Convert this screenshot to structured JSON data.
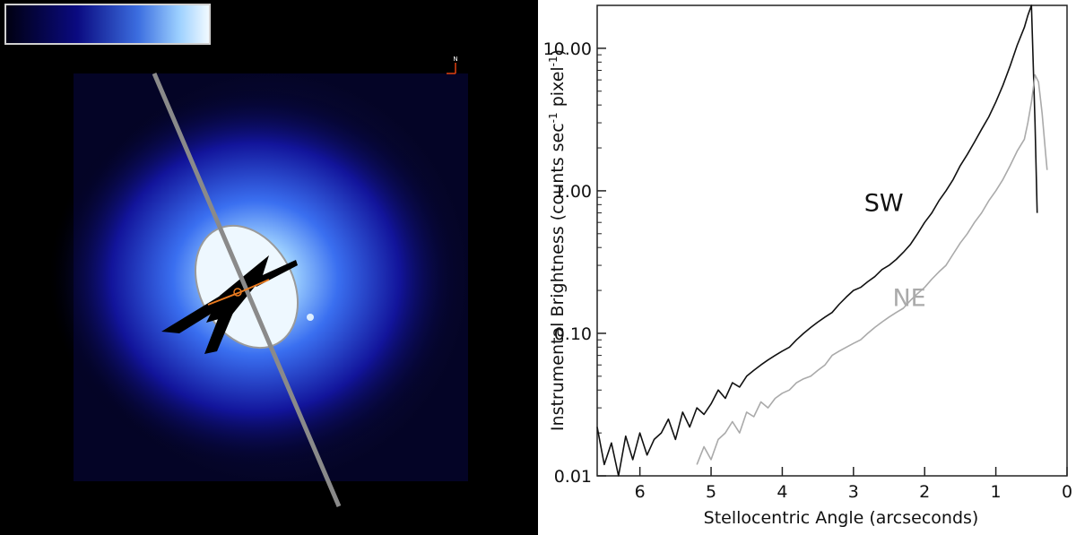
{
  "image_panel": {
    "compass": "N"
  },
  "chart_data": {
    "type": "line",
    "xlabel": "Stellocentric Angle (arcseconds)",
    "ylabel_main": "Instrumental Brightness (counts sec",
    "ylabel_sup1": "-1",
    "ylabel_mid": " pixel",
    "ylabel_sup2": "-1",
    "ylabel_end": ")",
    "xlim": [
      6.6,
      0
    ],
    "ylim": [
      0.01,
      20
    ],
    "yscale": "log",
    "x_ticks": [
      6,
      5,
      4,
      3,
      2,
      1,
      0
    ],
    "x_tick_labels": [
      "6",
      "5",
      "4",
      "3",
      "2",
      "1",
      "0"
    ],
    "y_ticks": [
      0.01,
      0.1,
      1,
      10
    ],
    "y_tick_labels": [
      "0.01",
      "0.10",
      "1.00",
      "10.00"
    ],
    "colors": {
      "SW": "#111111",
      "NE": "#aaaaaa"
    },
    "series": [
      {
        "name": "SW",
        "x": [
          6.6,
          6.5,
          6.4,
          6.3,
          6.2,
          6.1,
          6.0,
          5.9,
          5.8,
          5.7,
          5.6,
          5.5,
          5.4,
          5.3,
          5.2,
          5.1,
          5.0,
          4.9,
          4.8,
          4.7,
          4.6,
          4.5,
          4.4,
          4.3,
          4.2,
          4.1,
          4.0,
          3.9,
          3.8,
          3.7,
          3.6,
          3.5,
          3.4,
          3.3,
          3.2,
          3.1,
          3.0,
          2.9,
          2.8,
          2.7,
          2.6,
          2.5,
          2.4,
          2.3,
          2.2,
          2.1,
          2.0,
          1.9,
          1.8,
          1.7,
          1.6,
          1.5,
          1.4,
          1.3,
          1.2,
          1.1,
          1.0,
          0.9,
          0.8,
          0.7,
          0.6,
          0.55,
          0.5,
          0.45,
          0.42
        ],
        "values": [
          0.022,
          0.012,
          0.017,
          0.01,
          0.019,
          0.013,
          0.02,
          0.014,
          0.018,
          0.02,
          0.025,
          0.018,
          0.028,
          0.022,
          0.03,
          0.027,
          0.032,
          0.04,
          0.035,
          0.045,
          0.042,
          0.05,
          0.055,
          0.06,
          0.065,
          0.07,
          0.075,
          0.08,
          0.09,
          0.1,
          0.11,
          0.12,
          0.13,
          0.14,
          0.16,
          0.18,
          0.2,
          0.21,
          0.23,
          0.25,
          0.28,
          0.3,
          0.33,
          0.37,
          0.42,
          0.5,
          0.6,
          0.7,
          0.85,
          1.0,
          1.2,
          1.5,
          1.8,
          2.2,
          2.7,
          3.3,
          4.2,
          5.5,
          7.5,
          10.5,
          14.0,
          17.0,
          20.0,
          3.0,
          0.7
        ]
      },
      {
        "name": "NE",
        "x": [
          5.2,
          5.1,
          5.0,
          4.9,
          4.8,
          4.7,
          4.6,
          4.5,
          4.4,
          4.3,
          4.2,
          4.1,
          4.0,
          3.9,
          3.8,
          3.7,
          3.6,
          3.5,
          3.4,
          3.3,
          3.2,
          3.1,
          3.0,
          2.9,
          2.8,
          2.7,
          2.6,
          2.5,
          2.4,
          2.3,
          2.2,
          2.1,
          2.0,
          1.9,
          1.8,
          1.7,
          1.6,
          1.5,
          1.4,
          1.3,
          1.2,
          1.1,
          1.0,
          0.9,
          0.8,
          0.7,
          0.6,
          0.55,
          0.5,
          0.45,
          0.4,
          0.35,
          0.3,
          0.28
        ],
        "values": [
          0.012,
          0.016,
          0.013,
          0.018,
          0.02,
          0.024,
          0.02,
          0.028,
          0.026,
          0.033,
          0.03,
          0.035,
          0.038,
          0.04,
          0.045,
          0.048,
          0.05,
          0.055,
          0.06,
          0.07,
          0.075,
          0.08,
          0.085,
          0.09,
          0.1,
          0.11,
          0.12,
          0.13,
          0.14,
          0.15,
          0.17,
          0.19,
          0.21,
          0.24,
          0.27,
          0.3,
          0.36,
          0.43,
          0.5,
          0.6,
          0.7,
          0.85,
          1.0,
          1.2,
          1.5,
          1.9,
          2.3,
          3.0,
          4.2,
          6.5,
          5.8,
          3.5,
          1.8,
          1.4
        ]
      }
    ]
  }
}
